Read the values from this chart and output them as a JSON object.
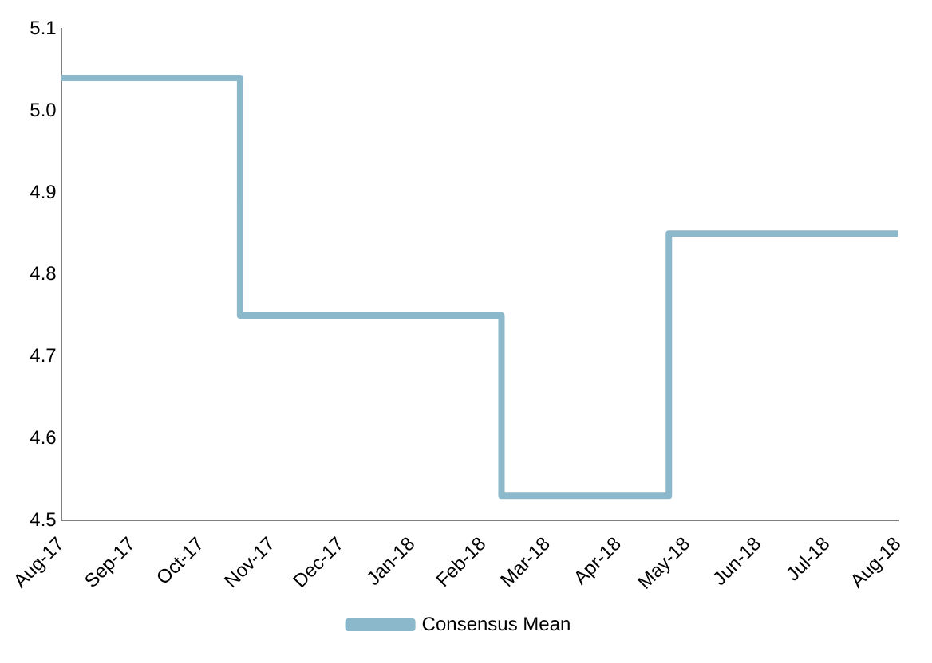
{
  "chart_data": {
    "type": "step",
    "x": [
      "2017-08-01",
      "2017-10-18",
      "2018-02-09",
      "2018-04-23",
      "2018-08-01"
    ],
    "series": [
      {
        "name": "Consensus Mean",
        "color": "#8bb8cb",
        "values": [
          5.04,
          4.75,
          4.53,
          4.85,
          4.85
        ]
      }
    ],
    "xlim": [
      "2017-08-01",
      "2018-08-01"
    ],
    "xticks": [
      {
        "value": "2017-08-01",
        "label": "Aug-17"
      },
      {
        "value": "2017-09-01",
        "label": "Sep-17"
      },
      {
        "value": "2017-10-01",
        "label": "Oct-17"
      },
      {
        "value": "2017-11-01",
        "label": "Nov-17"
      },
      {
        "value": "2017-12-01",
        "label": "Dec-17"
      },
      {
        "value": "2018-01-01",
        "label": "Jan-18"
      },
      {
        "value": "2018-02-01",
        "label": "Feb-18"
      },
      {
        "value": "2018-03-01",
        "label": "Mar-18"
      },
      {
        "value": "2018-04-01",
        "label": "Apr-18"
      },
      {
        "value": "2018-05-01",
        "label": "May-18"
      },
      {
        "value": "2018-06-01",
        "label": "Jun-18"
      },
      {
        "value": "2018-07-01",
        "label": "Jul-18"
      },
      {
        "value": "2018-08-01",
        "label": "Aug-18"
      }
    ],
    "ylim": [
      4.5,
      5.1
    ],
    "yticks": [
      4.5,
      4.6,
      4.7,
      4.8,
      4.9,
      {
        "value": 5,
        "label": "5.0"
      },
      5.1
    ],
    "grid": false,
    "legend": "bottom",
    "marker": "none",
    "line_style": "solid"
  }
}
